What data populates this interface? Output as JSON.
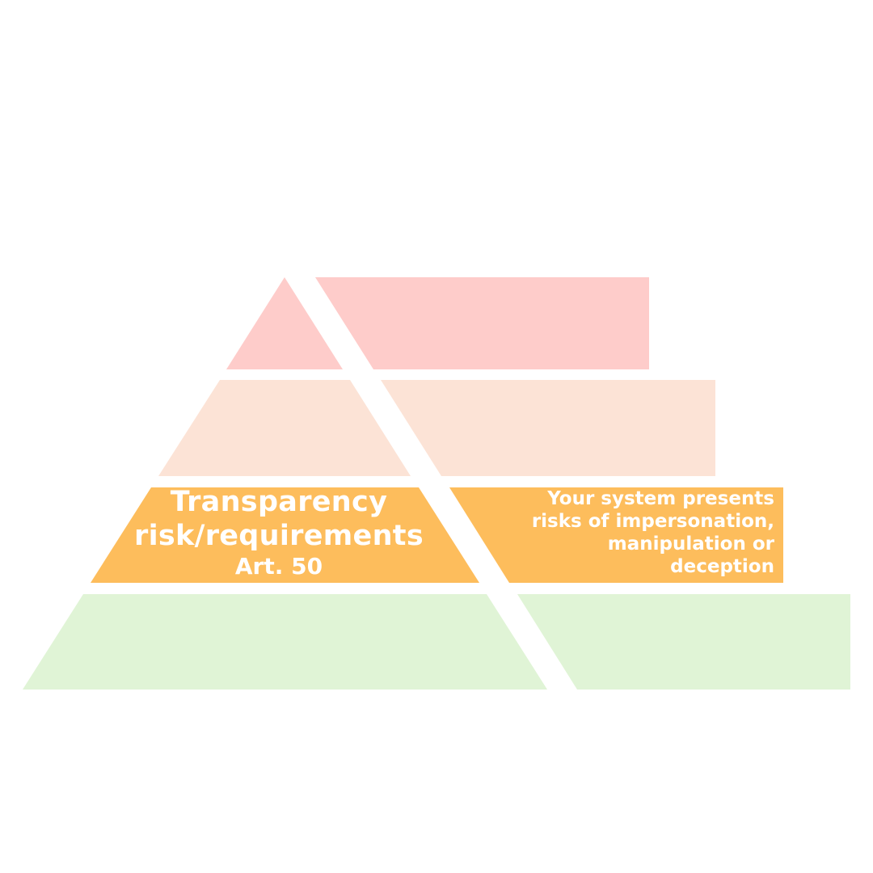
{
  "pyramid": {
    "tiers": [
      {
        "id": "unacceptable",
        "color": "#FECCCA",
        "label": "",
        "article": "",
        "description": ""
      },
      {
        "id": "high",
        "color": "#FCE3D6",
        "label": "",
        "article": "",
        "description": ""
      },
      {
        "id": "transparency",
        "color": "#FDBD5C",
        "label": "Transparency risk/requirements",
        "article": "Art. 50",
        "description": "Your  system presents risks of impersonation, manipulation or deception"
      },
      {
        "id": "minimal",
        "color": "#E0F4D6",
        "label": "",
        "article": "",
        "description": ""
      }
    ]
  }
}
